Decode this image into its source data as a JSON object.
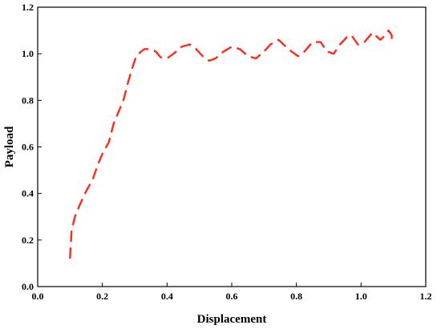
{
  "chart_data": {
    "type": "line",
    "title": "",
    "xlabel": "Displacement",
    "ylabel": "Payload",
    "xlim": [
      0.0,
      1.2
    ],
    "ylim": [
      0.0,
      1.2
    ],
    "x_ticks": [
      0.0,
      0.2,
      0.4,
      0.6,
      0.8,
      1.0,
      1.2
    ],
    "y_ticks": [
      0.0,
      0.2,
      0.4,
      0.6,
      0.8,
      1.0,
      1.2
    ],
    "x_tick_labels": [
      "0.0",
      "0.2",
      "0.4",
      "0.6",
      "0.8",
      "1.0",
      "1.2"
    ],
    "y_tick_labels": [
      "0.0",
      "0.2",
      "0.4",
      "0.6",
      "0.8",
      "1.0",
      "1.2"
    ],
    "grid": false,
    "legend": "none",
    "line_style": "dashed",
    "series": [
      {
        "color": "#ff2a1a",
        "x": [
          0.1,
          0.105,
          0.115,
          0.13,
          0.15,
          0.17,
          0.185,
          0.2,
          0.22,
          0.235,
          0.25,
          0.265,
          0.28,
          0.295,
          0.305,
          0.32,
          0.33,
          0.35,
          0.365,
          0.38,
          0.4,
          0.42,
          0.445,
          0.47,
          0.49,
          0.51,
          0.53,
          0.55,
          0.575,
          0.6,
          0.625,
          0.65,
          0.675,
          0.7,
          0.72,
          0.745,
          0.76,
          0.785,
          0.805,
          0.825,
          0.85,
          0.875,
          0.895,
          0.915,
          0.935,
          0.955,
          0.97,
          0.99,
          1.01,
          1.035,
          1.06,
          1.075,
          1.085,
          1.095,
          1.095
        ],
        "y": [
          0.12,
          0.24,
          0.3,
          0.35,
          0.41,
          0.46,
          0.52,
          0.57,
          0.62,
          0.7,
          0.75,
          0.8,
          0.88,
          0.95,
          0.99,
          1.01,
          1.02,
          1.02,
          1.01,
          0.985,
          0.98,
          1.0,
          1.03,
          1.04,
          1.02,
          0.99,
          0.97,
          0.98,
          1.01,
          1.03,
          1.02,
          0.99,
          0.98,
          1.01,
          1.04,
          1.06,
          1.04,
          1.01,
          0.99,
          1.01,
          1.05,
          1.05,
          1.01,
          1.0,
          1.04,
          1.07,
          1.08,
          1.04,
          1.05,
          1.09,
          1.06,
          1.08,
          1.1,
          1.08,
          1.05
        ]
      }
    ]
  }
}
